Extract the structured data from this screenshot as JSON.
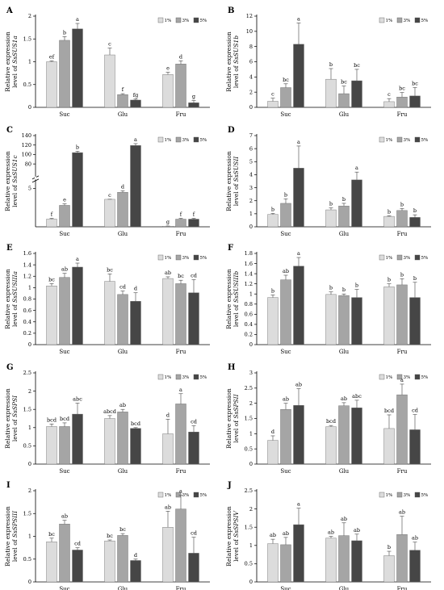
{
  "figure": {
    "series": [
      {
        "name": "1%",
        "color": "#dcdcdc"
      },
      {
        "name": "3%",
        "color": "#a5a5a5"
      },
      {
        "name": "5%",
        "color": "#464646"
      }
    ],
    "categories": [
      "Suc",
      "Glu",
      "Fru"
    ]
  },
  "chart_data": [
    {
      "type": "bar",
      "panel": "A",
      "gene": "SsSUS1a",
      "ylabel": "Relative expression level of SsSUS1a",
      "ylim": [
        0,
        2
      ],
      "yticks": [
        "0",
        "0.5",
        "1",
        "1.5",
        "2"
      ],
      "categories": [
        "Suc",
        "Glu",
        "Fru"
      ],
      "series": [
        {
          "name": "1%",
          "values": [
            1.0,
            1.15,
            0.72
          ],
          "errors": [
            0.02,
            0.15,
            0.05
          ],
          "letters": [
            "ef",
            "c",
            "e"
          ]
        },
        {
          "name": "3%",
          "values": [
            1.47,
            0.28,
            0.95
          ],
          "errors": [
            0.08,
            0.02,
            0.07
          ],
          "letters": [
            "b",
            "f",
            "d"
          ]
        },
        {
          "name": "5%",
          "values": [
            1.72,
            0.16,
            0.1
          ],
          "errors": [
            0.12,
            0.02,
            0.05
          ],
          "letters": [
            "a",
            "fg",
            "g"
          ]
        }
      ]
    },
    {
      "type": "bar",
      "panel": "B",
      "gene": "SsSUS1b",
      "ylabel": "Relative expression level of SsSUS1b",
      "ylim": [
        0,
        12
      ],
      "yticks": [
        "0",
        "2",
        "4",
        "6",
        "8",
        "10",
        "12"
      ],
      "categories": [
        "Suc",
        "Glu",
        "Fru"
      ],
      "series": [
        {
          "name": "1%",
          "values": [
            0.8,
            3.7,
            0.75
          ],
          "errors": [
            0.4,
            1.4,
            0.4
          ],
          "letters": [
            "c",
            "b",
            "c"
          ]
        },
        {
          "name": "3%",
          "values": [
            2.6,
            1.8,
            1.35
          ],
          "errors": [
            0.5,
            1.0,
            0.6
          ],
          "letters": [
            "bc",
            "bc",
            "bc"
          ]
        },
        {
          "name": "5%",
          "values": [
            8.3,
            3.5,
            1.5
          ],
          "errors": [
            2.8,
            1.5,
            1.1
          ],
          "letters": [
            "a",
            "bc",
            "bc"
          ]
        }
      ]
    },
    {
      "type": "bar",
      "panel": "C",
      "gene": "SsSUS1c",
      "ylabel": "Relative expression level of SsSUS1c",
      "ylim": [
        0,
        140
      ],
      "yticks": [
        "5",
        "80",
        "100",
        "120",
        "140"
      ],
      "broken_axis": true,
      "categories": [
        "Suc",
        "Glu",
        "Fru"
      ],
      "series": [
        {
          "name": "1%",
          "values": [
            1.0,
            5.2,
            0.08
          ],
          "errors": [
            0.1,
            0.2,
            0.02
          ],
          "letters": [
            "f",
            "c",
            "g"
          ]
        },
        {
          "name": "3%",
          "values": [
            2.8,
            4.5,
            1.0
          ],
          "errors": [
            0.2,
            0.2,
            0.1
          ],
          "letters": [
            "e",
            "d",
            "f"
          ]
        },
        {
          "name": "5%",
          "values": [
            104,
            119,
            1.0
          ],
          "errors": [
            3.0,
            4.0,
            0.1
          ],
          "letters": [
            "b",
            "a",
            "f"
          ]
        }
      ]
    },
    {
      "type": "bar",
      "panel": "D",
      "gene": "SsSUSII",
      "ylabel": "Relative expression level of SsSUSII",
      "ylim": [
        0,
        7
      ],
      "yticks": [
        "0",
        "1",
        "2",
        "3",
        "4",
        "5",
        "6",
        "7"
      ],
      "categories": [
        "Suc",
        "Glu",
        "Fru"
      ],
      "series": [
        {
          "name": "1%",
          "values": [
            0.95,
            1.3,
            0.8
          ],
          "errors": [
            0.08,
            0.15,
            0.05
          ],
          "letters": [
            "b",
            "b",
            "b"
          ]
        },
        {
          "name": "3%",
          "values": [
            1.8,
            1.6,
            1.25
          ],
          "errors": [
            0.35,
            0.2,
            0.15
          ],
          "letters": [
            "b",
            "b",
            "b"
          ]
        },
        {
          "name": "5%",
          "values": [
            4.5,
            3.6,
            0.72
          ],
          "errors": [
            1.7,
            0.6,
            0.2
          ],
          "letters": [
            "a",
            "a",
            "b"
          ]
        }
      ]
    },
    {
      "type": "bar",
      "panel": "E",
      "gene": "SsSUSIIIa",
      "ylabel": "Relative expression level of SsSUSIIIa",
      "ylim": [
        0,
        1.6
      ],
      "yticks": [
        "0",
        "0.2",
        "0.4",
        "0.6",
        "0.8",
        "1",
        "1.2",
        "1.4",
        "1.6"
      ],
      "categories": [
        "Suc",
        "Glu",
        "Fru"
      ],
      "series": [
        {
          "name": "1%",
          "values": [
            1.03,
            1.11,
            1.16
          ],
          "errors": [
            0.04,
            0.13,
            0.03
          ],
          "letters": [
            "bc",
            "bc",
            "ab"
          ]
        },
        {
          "name": "3%",
          "values": [
            1.18,
            0.88,
            1.07
          ],
          "errors": [
            0.07,
            0.06,
            0.06
          ],
          "letters": [
            "ab",
            "cd",
            "bc"
          ]
        },
        {
          "name": "5%",
          "values": [
            1.36,
            0.76,
            0.91
          ],
          "errors": [
            0.07,
            0.15,
            0.23
          ],
          "letters": [
            "a",
            "d",
            "cd"
          ]
        }
      ]
    },
    {
      "type": "bar",
      "panel": "F",
      "gene": "SsSUSIIIb",
      "ylabel": "Relative expression level of SsSUSIIIb",
      "ylim": [
        0,
        1.8
      ],
      "yticks": [
        "0",
        "0.2",
        "0.4",
        "0.6",
        "0.8",
        "1",
        "1.2",
        "1.4",
        "1.6",
        "1.8"
      ],
      "categories": [
        "Suc",
        "Glu",
        "Fru"
      ],
      "series": [
        {
          "name": "1%",
          "values": [
            0.93,
            0.99,
            1.14
          ],
          "errors": [
            0.05,
            0.05,
            0.06
          ],
          "letters": [
            "b",
            "b",
            "b"
          ]
        },
        {
          "name": "3%",
          "values": [
            1.28,
            0.97,
            1.18
          ],
          "errors": [
            0.09,
            0.03,
            0.12
          ],
          "letters": [
            "ab",
            "b",
            "b"
          ]
        },
        {
          "name": "5%",
          "values": [
            1.55,
            0.93,
            0.93
          ],
          "errors": [
            0.17,
            0.16,
            0.3
          ],
          "letters": [
            "a",
            "b",
            "b"
          ]
        }
      ]
    },
    {
      "type": "bar",
      "panel": "G",
      "gene": "SsSPSI",
      "ylabel": "Relative expression level of SsSPSI",
      "ylim": [
        0,
        2.5
      ],
      "yticks": [
        "0",
        "0.5",
        "1",
        "1.5",
        "2",
        "2.5"
      ],
      "categories": [
        "Suc",
        "Glu",
        "Fru"
      ],
      "series": [
        {
          "name": "1%",
          "values": [
            1.03,
            1.25,
            0.83
          ],
          "errors": [
            0.07,
            0.08,
            0.4
          ],
          "letters": [
            "bcd",
            "abcd",
            "d"
          ]
        },
        {
          "name": "3%",
          "values": [
            1.03,
            1.43,
            1.65
          ],
          "errors": [
            0.1,
            0.07,
            0.28
          ],
          "letters": [
            "bcd",
            "ab",
            "a"
          ]
        },
        {
          "name": "5%",
          "values": [
            1.37,
            0.98,
            0.88
          ],
          "errors": [
            0.3,
            0.02,
            0.17
          ],
          "letters": [
            "abc",
            "bcd",
            "cd"
          ]
        }
      ]
    },
    {
      "type": "bar",
      "panel": "H",
      "gene": "SsSPSII",
      "ylabel": "Relative expression level of SsSPSII",
      "ylim": [
        0,
        3
      ],
      "yticks": [
        "0",
        "0.5",
        "1",
        "1.5",
        "2",
        "2.5",
        "3"
      ],
      "categories": [
        "Suc",
        "Glu",
        "Fru"
      ],
      "series": [
        {
          "name": "1%",
          "values": [
            0.78,
            1.23,
            1.17
          ],
          "errors": [
            0.15,
            0.04,
            0.45
          ],
          "letters": [
            "d",
            "bcd",
            "bcd"
          ]
        },
        {
          "name": "3%",
          "values": [
            1.8,
            1.92,
            2.28
          ],
          "errors": [
            0.2,
            0.1,
            0.35
          ],
          "letters": [
            "ab",
            "ab",
            "a"
          ]
        },
        {
          "name": "5%",
          "values": [
            1.93,
            1.85,
            1.13
          ],
          "errors": [
            0.55,
            0.25,
            0.5
          ],
          "letters": [
            "ab",
            "abc",
            "cd"
          ]
        }
      ]
    },
    {
      "type": "bar",
      "panel": "I",
      "gene": "SsSPSIII",
      "ylabel": "Relative expression level of SsSPSIII",
      "ylim": [
        0,
        2
      ],
      "yticks": [
        "0",
        "0.5",
        "1",
        "1.5",
        "2"
      ],
      "categories": [
        "Suc",
        "Glu",
        "Fru"
      ],
      "series": [
        {
          "name": "1%",
          "values": [
            0.88,
            0.9,
            1.2
          ],
          "errors": [
            0.08,
            0.02,
            0.35
          ],
          "letters": [
            "bc",
            "bc",
            "ab"
          ]
        },
        {
          "name": "3%",
          "values": [
            1.27,
            1.02,
            1.6
          ],
          "errors": [
            0.08,
            0.04,
            0.3
          ],
          "letters": [
            "ab",
            "bc",
            "a"
          ]
        },
        {
          "name": "5%",
          "values": [
            0.7,
            0.47,
            0.63
          ],
          "errors": [
            0.05,
            0.03,
            0.35
          ],
          "letters": [
            "cd",
            "d",
            "cd"
          ]
        }
      ]
    },
    {
      "type": "bar",
      "panel": "J",
      "gene": "SsSPSIV",
      "ylabel": "Relative expression level of SsSPSIV",
      "ylim": [
        0,
        2.5
      ],
      "yticks": [
        "0",
        "0.5",
        "1",
        "1.5",
        "2",
        "2.5"
      ],
      "categories": [
        "Suc",
        "Glu",
        "Fru"
      ],
      "series": [
        {
          "name": "1%",
          "values": [
            1.05,
            1.2,
            0.72
          ],
          "errors": [
            0.12,
            0.05,
            0.12
          ],
          "letters": [
            "ab",
            "ab",
            "b"
          ]
        },
        {
          "name": "3%",
          "values": [
            1.02,
            1.27,
            1.3
          ],
          "errors": [
            0.2,
            0.35,
            0.5
          ],
          "letters": [
            "ab",
            "ab",
            "ab"
          ]
        },
        {
          "name": "5%",
          "values": [
            1.57,
            1.13,
            0.87
          ],
          "errors": [
            0.45,
            0.18,
            0.22
          ],
          "letters": [
            "a",
            "ab",
            "ab"
          ]
        }
      ]
    }
  ]
}
